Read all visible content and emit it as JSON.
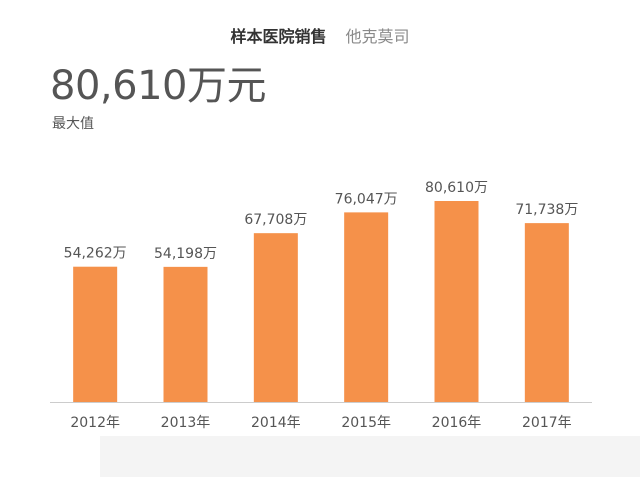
{
  "header": {
    "title": "样本医院销售",
    "subtitle": "他克莫司"
  },
  "summary": {
    "max_value": "80,610万元",
    "max_label": "最大值"
  },
  "colors": {
    "bar": "#f5914a",
    "axis": "#cccccc",
    "text": "#555555"
  },
  "chart_data": {
    "type": "bar",
    "categories": [
      "2012年",
      "2013年",
      "2014年",
      "2015年",
      "2016年",
      "2017年"
    ],
    "values": [
      54262,
      54198,
      67708,
      76047,
      80610,
      71738
    ],
    "data_labels": [
      "54,262万",
      "54,198万",
      "67,708万",
      "76,047万",
      "80,610万",
      "71,738万"
    ],
    "xlabel": "",
    "ylabel": "",
    "ylim": [
      0,
      80610
    ],
    "grid": false,
    "legend": "none"
  }
}
